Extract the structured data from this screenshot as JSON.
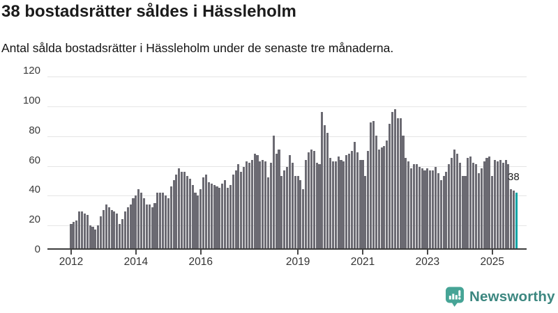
{
  "title": "38 bostadsrätter såldes i Hässleholm",
  "subtitle": "Antal sålda bostadsrätter i Hässleholm under de senaste tre månaderna.",
  "annotation": {
    "last_value_label": "38"
  },
  "branding": {
    "name": "Newsworthy",
    "icon_color": "#46a496",
    "text_color": "#3c8780"
  },
  "chart_data": {
    "type": "bar",
    "title": "38 bostadsrätter såldes i Hässleholm",
    "xlabel": "",
    "ylabel": "",
    "ylim": [
      0,
      120
    ],
    "yticks": [
      0,
      20,
      40,
      60,
      80,
      100,
      120
    ],
    "xtick_years": [
      2012,
      2014,
      2016,
      2019,
      2021,
      2023,
      2025
    ],
    "grid": true,
    "start_year": 2012,
    "start_month": 1,
    "frequency": "monthly",
    "bar_color": "#6b6a72",
    "highlight_color": "#00a3a4",
    "highlight_index": 165,
    "highlight_value": 38,
    "values": [
      17,
      18,
      19,
      25,
      25,
      24,
      23,
      16,
      15,
      13,
      16,
      22,
      26,
      30,
      28,
      26,
      25,
      24,
      17,
      20,
      25,
      28,
      30,
      34,
      36,
      40,
      38,
      34,
      30,
      30,
      28,
      31,
      38,
      38,
      38,
      36,
      34,
      42,
      46,
      50,
      54,
      52,
      52,
      49,
      47,
      43,
      38,
      36,
      40,
      48,
      50,
      45,
      44,
      43,
      42,
      41,
      44,
      46,
      41,
      43,
      50,
      53,
      57,
      52,
      55,
      59,
      58,
      60,
      64,
      63,
      59,
      60,
      59,
      48,
      58,
      76,
      64,
      67,
      49,
      53,
      55,
      63,
      58,
      49,
      49,
      46,
      40,
      60,
      65,
      67,
      66,
      58,
      57,
      92,
      83,
      78,
      61,
      59,
      59,
      62,
      60,
      59,
      63,
      64,
      66,
      72,
      65,
      60,
      60,
      49,
      66,
      85,
      86,
      76,
      67,
      68,
      69,
      73,
      84,
      92,
      94,
      88,
      88,
      76,
      61,
      59,
      54,
      57,
      57,
      55,
      54,
      53,
      54,
      53,
      53,
      55,
      51,
      46,
      49,
      52,
      57,
      61,
      67,
      64,
      58,
      49,
      49,
      61,
      62,
      58,
      57,
      51,
      54,
      59,
      61,
      62,
      49,
      60,
      59,
      60,
      58,
      60,
      57,
      40,
      39,
      38
    ]
  }
}
